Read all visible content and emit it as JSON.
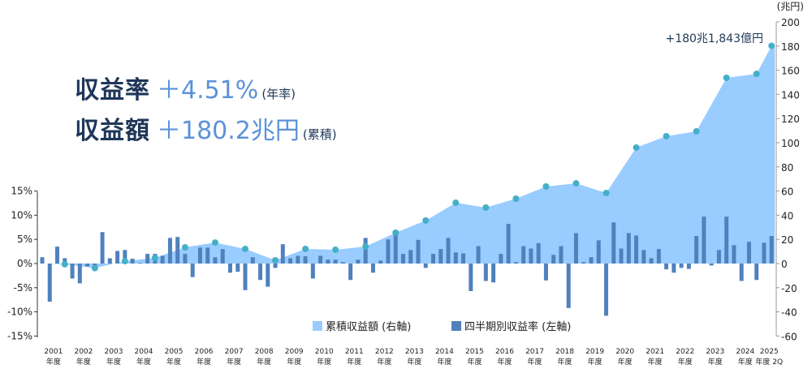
{
  "headline": {
    "rate_label": "収益率",
    "rate_value": "＋4.51%",
    "rate_note": "(年率)",
    "amount_label": "収益額",
    "amount_value": "＋180.2兆円",
    "amount_note": "(累積)"
  },
  "chart_data": {
    "type": "bar+area",
    "right_axis_unit": "(兆円)",
    "left_ylim": [
      -15,
      20
    ],
    "right_ylim": [
      -60,
      200
    ],
    "left_ticks": [
      "15%",
      "10%",
      "5%",
      "0%",
      "-5%",
      "-10%",
      "-15%"
    ],
    "right_ticks": [
      "200",
      "180",
      "160",
      "140",
      "120",
      "100",
      "80",
      "60",
      "40",
      "20",
      "0",
      "-20",
      "-40",
      "-60"
    ],
    "x_labels": [
      [
        "2001",
        "年度"
      ],
      [
        "2002",
        "年度"
      ],
      [
        "2003",
        "年度"
      ],
      [
        "2004",
        "年度"
      ],
      [
        "2005",
        "年度"
      ],
      [
        "2006",
        "年度"
      ],
      [
        "2007",
        "年度"
      ],
      [
        "2008",
        "年度"
      ],
      [
        "2009",
        "年度"
      ],
      [
        "2010",
        "年度"
      ],
      [
        "2011",
        "年度"
      ],
      [
        "2012",
        "年度"
      ],
      [
        "2013",
        "年度"
      ],
      [
        "2014",
        "年度"
      ],
      [
        "2015",
        "年度"
      ],
      [
        "2016",
        "年度"
      ],
      [
        "2017",
        "年度"
      ],
      [
        "2018",
        "年度"
      ],
      [
        "2019",
        "年度"
      ],
      [
        "2020",
        "年度"
      ],
      [
        "2021",
        "年度"
      ],
      [
        "2022",
        "年度"
      ],
      [
        "2023",
        "年度"
      ],
      [
        "2024",
        "年度"
      ],
      [
        "2025",
        "年度 2Q"
      ]
    ],
    "annotation": "+180兆1,843億円",
    "grid": false,
    "legend_position": "bottom-center",
    "colors": {
      "area": "#99ccff",
      "bar": "#4f81bd",
      "marker": "#45afc7"
    },
    "series": [
      {
        "name": "累積収益額 (右軸)",
        "type": "area",
        "axis": "right",
        "points_fiscal_year_end": [
          -0.6,
          -3.8,
          2.0,
          4.7,
          13.4,
          17.4,
          12.1,
          2.7,
          12.1,
          11.4,
          14.1,
          25.5,
          35.6,
          50.3,
          46.3,
          53.7,
          63.8,
          66.4,
          58.4,
          96.0,
          105.4,
          109.4,
          153.7,
          157.0,
          180.2
        ]
      },
      {
        "name": "四半期別収益率 (左軸)",
        "type": "bar",
        "axis": "left",
        "unit": "%",
        "values": [
          1.3,
          -7.9,
          3.5,
          1.1,
          -3.1,
          -4.1,
          -0.6,
          -0.8,
          6.5,
          1.1,
          2.6,
          2.8,
          1.0,
          0.1,
          2.0,
          2.0,
          1.6,
          5.3,
          5.5,
          2.0,
          -2.8,
          3.3,
          3.3,
          1.3,
          3.0,
          -1.9,
          -1.7,
          -5.5,
          1.3,
          -3.4,
          -4.8,
          -0.9,
          4.0,
          1.1,
          1.6,
          1.5,
          -3.1,
          1.6,
          0.8,
          0.8,
          0.3,
          -3.4,
          0.8,
          5.3,
          -1.9,
          0.6,
          5.0,
          6.2,
          2.0,
          2.8,
          4.9,
          -0.9,
          2.0,
          3.0,
          5.3,
          2.3,
          2.1,
          -5.7,
          3.6,
          -3.6,
          -3.9,
          2.0,
          8.2,
          0.3,
          3.6,
          3.1,
          4.2,
          -3.5,
          1.8,
          3.6,
          -9.2,
          6.3,
          0.3,
          1.3,
          4.8,
          -10.8,
          8.5,
          3.1,
          6.3,
          5.8,
          2.8,
          1.1,
          3.0,
          -1.2,
          -1.9,
          -0.9,
          -1.1,
          5.7,
          9.7,
          -0.4,
          2.8,
          9.7,
          3.8,
          -3.6,
          4.5,
          -3.4,
          4.3,
          5.7
        ]
      }
    ]
  }
}
